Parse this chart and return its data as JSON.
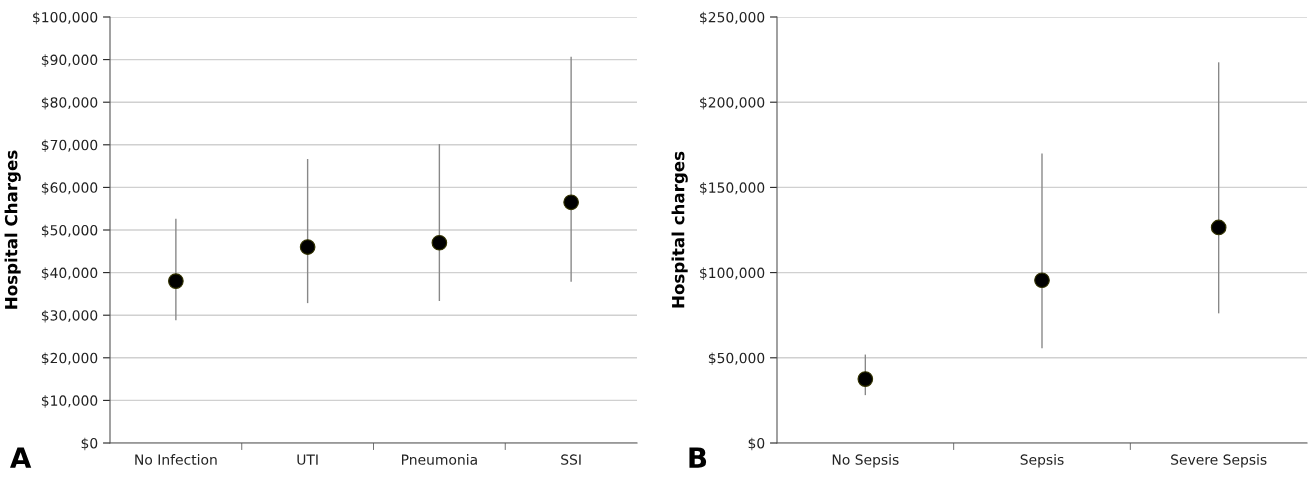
{
  "chart_data": [
    {
      "type": "scatter",
      "ylabel": "Hospital Charges",
      "annotations": [
        "A"
      ],
      "categories": [
        "No Infection",
        "UTI",
        "Pneumonia",
        "SSI"
      ],
      "series": [
        {
          "color": "#000000",
          "values": [
            38000,
            46000,
            47000,
            56500
          ],
          "errors": [
            [
              29000,
              52500
            ],
            [
              33000,
              66500
            ],
            [
              33500,
              70000
            ],
            [
              38000,
              90500
            ]
          ]
        }
      ],
      "ylim": [
        0,
        100000
      ],
      "yticks": [
        {
          "value": 0,
          "label": "$0"
        },
        {
          "value": 10000,
          "label": "$10,000"
        },
        {
          "value": 20000,
          "label": "$20,000"
        },
        {
          "value": 30000,
          "label": "$30,000"
        },
        {
          "value": 40000,
          "label": "$40,000"
        },
        {
          "value": 50000,
          "label": "$50,000"
        },
        {
          "value": 60000,
          "label": "$60,000"
        },
        {
          "value": 70000,
          "label": "$70,000"
        },
        {
          "value": 80000,
          "label": "$80,000"
        },
        {
          "value": 90000,
          "label": "$90,000"
        },
        {
          "value": 100000,
          "label": "$100,000"
        }
      ],
      "grid": "y",
      "marker": "circle"
    },
    {
      "type": "scatter",
      "ylabel": "Hospital charges",
      "annotations": [
        "B"
      ],
      "categories": [
        "No Sepsis",
        "Sepsis",
        "Severe Sepsis"
      ],
      "series": [
        {
          "color": "#000000",
          "values": [
            37500,
            95500,
            126500
          ],
          "errors": [
            [
              28500,
              51500
            ],
            [
              56000,
              169500
            ],
            [
              76500,
              223000
            ]
          ]
        }
      ],
      "ylim": [
        0,
        250000
      ],
      "yticks": [
        {
          "value": 0,
          "label": "$0"
        },
        {
          "value": 50000,
          "label": "$50,000"
        },
        {
          "value": 100000,
          "label": "$100,000"
        },
        {
          "value": 150000,
          "label": "$150,000"
        },
        {
          "value": 200000,
          "label": "$200,000"
        },
        {
          "value": 250000,
          "label": "$250,000"
        }
      ],
      "grid": "y",
      "marker": "circle"
    }
  ]
}
